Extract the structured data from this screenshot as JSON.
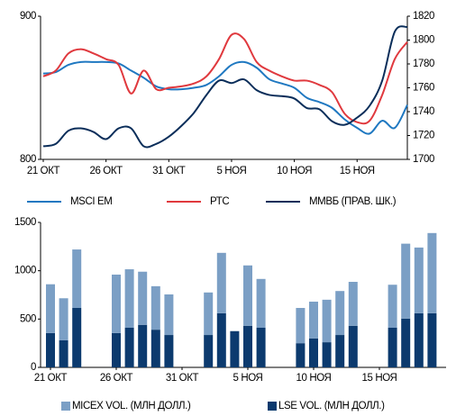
{
  "chart_data": [
    {
      "type": "line",
      "categories": [
        "21 ОКТ",
        null,
        null,
        null,
        null,
        "26 ОКТ",
        null,
        null,
        null,
        null,
        "31 ОКТ",
        null,
        null,
        null,
        null,
        "5 НОЯ",
        null,
        null,
        null,
        null,
        "10 НОЯ",
        null,
        null,
        null,
        null,
        "15 НОЯ",
        null,
        null,
        null,
        null
      ],
      "ylim": [
        800,
        900
      ],
      "yticks": [
        800,
        900
      ],
      "y2lim": [
        1700,
        1820
      ],
      "y2ticks": [
        1700,
        1720,
        1740,
        1760,
        1780,
        1800,
        1820
      ],
      "legend": "bottom",
      "series": [
        {
          "name": "MSCI EM",
          "color": "#1f78c1",
          "values": [
            860,
            861,
            866,
            868,
            868,
            868,
            867,
            862,
            857,
            851,
            849,
            849,
            850,
            852,
            858,
            866,
            868,
            864,
            856,
            853,
            850,
            843,
            840,
            836,
            828,
            822,
            818,
            827,
            822,
            838
          ]
        },
        {
          "name": "РТС",
          "color": "#e0393e",
          "values": [
            858,
            862,
            874,
            877,
            874,
            870,
            866,
            846,
            862,
            849,
            850,
            851,
            853,
            858,
            870,
            887,
            884,
            868,
            862,
            858,
            855,
            855,
            852,
            847,
            832,
            826,
            827,
            845,
            870,
            882
          ]
        },
        {
          "name": "ММВБ (ПРАВ. ШК.)",
          "color": "#0b2e5a",
          "axis": "y2",
          "values": [
            1711,
            1713,
            1724,
            1726,
            1723,
            1717,
            1726,
            1726,
            1711,
            1713,
            1719,
            1728,
            1739,
            1754,
            1766,
            1764,
            1767,
            1758,
            1754,
            1753,
            1751,
            1743,
            1742,
            1732,
            1729,
            1735,
            1745,
            1766,
            1807,
            1811
          ]
        }
      ]
    },
    {
      "type": "bar",
      "stacked": true,
      "categories": [
        "21 ОКТ",
        null,
        null,
        null,
        null,
        "26 ОКТ",
        null,
        null,
        null,
        null,
        "31 ОКТ",
        null,
        null,
        null,
        null,
        "5 НОЯ",
        null,
        null,
        null,
        null,
        "10 НОЯ",
        null,
        null,
        null,
        null,
        "15 НОЯ",
        null,
        null,
        null,
        null
      ],
      "ylim": [
        0,
        1500
      ],
      "yticks": [
        0,
        500,
        1000,
        1500
      ],
      "legend": "bottom",
      "series": [
        {
          "name": "MICEX VOL. (МЛН ДОЛЛ.)",
          "color": "#7b9fc5",
          "values": [
            505,
            435,
            605,
            null,
            null,
            605,
            605,
            550,
            450,
            420,
            null,
            null,
            440,
            625,
            null,
            625,
            505,
            null,
            null,
            365,
            380,
            440,
            455,
            455,
            null,
            null,
            445,
            775,
            680,
            830
          ]
        },
        {
          "name": "LSE VOL. (МЛН ДОЛЛ.)",
          "color": "#0c3a6e",
          "values": [
            355,
            280,
            615,
            null,
            null,
            355,
            410,
            440,
            390,
            335,
            null,
            null,
            335,
            560,
            375,
            430,
            410,
            null,
            null,
            250,
            300,
            260,
            335,
            430,
            null,
            null,
            410,
            505,
            560,
            560
          ]
        }
      ]
    }
  ]
}
